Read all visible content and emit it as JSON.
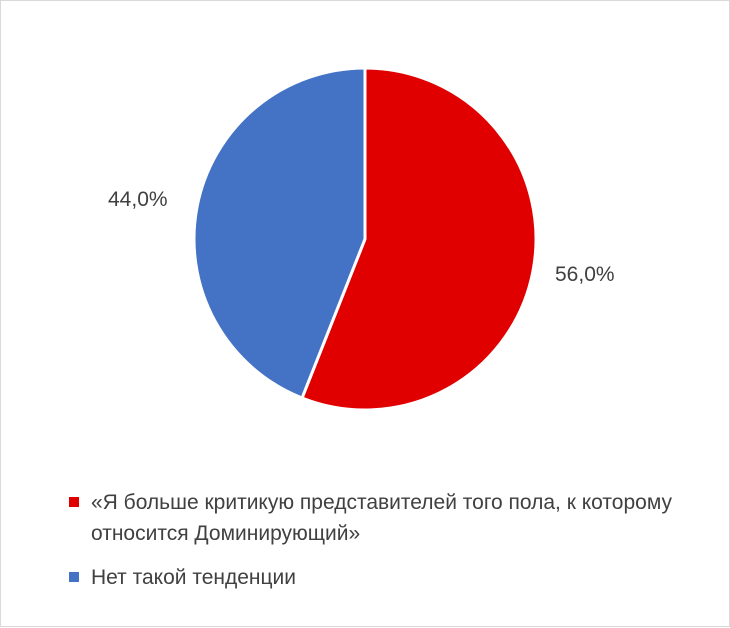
{
  "chart_data": {
    "type": "pie",
    "slices": [
      {
        "label": "«Я больше критикую представителей того пола, к которому относится Доминирующий»",
        "value": 56.0,
        "display": "56,0%",
        "color": "#e00000"
      },
      {
        "label": "Нет такой тенденции",
        "value": 44.0,
        "display": "44,0%",
        "color": "#4472c4"
      }
    ],
    "start_angle_deg": 0,
    "direction": "clockwise",
    "legend_position": "bottom"
  }
}
